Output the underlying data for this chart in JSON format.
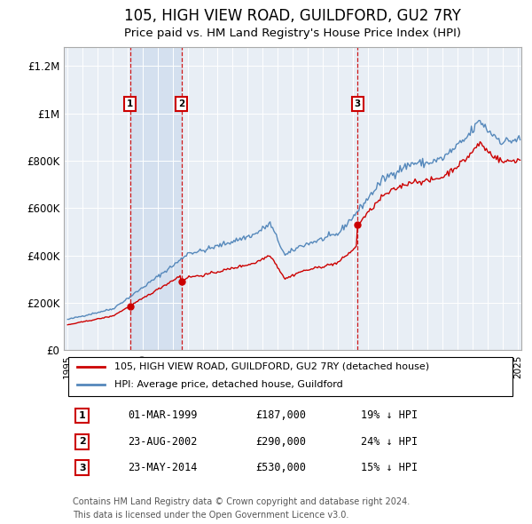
{
  "title": "105, HIGH VIEW ROAD, GUILDFORD, GU2 7RY",
  "subtitle": "Price paid vs. HM Land Registry's House Price Index (HPI)",
  "title_fontsize": 12,
  "subtitle_fontsize": 10,
  "ylabel_ticks": [
    "£0",
    "£200K",
    "£400K",
    "£600K",
    "£800K",
    "£1M",
    "£1.2M"
  ],
  "ytick_values": [
    0,
    200000,
    400000,
    600000,
    800000,
    1000000,
    1200000
  ],
  "ylim": [
    0,
    1280000
  ],
  "sale_dates_str": [
    "1999-03-01",
    "2002-08-01",
    "2014-05-01"
  ],
  "sale_prices": [
    187000,
    290000,
    530000
  ],
  "sale_labels": [
    "1",
    "2",
    "3"
  ],
  "sale_notes": [
    "01-MAR-1999",
    "23-AUG-2002",
    "23-MAY-2014"
  ],
  "sale_prices_str": [
    "£187,000",
    "£290,000",
    "£530,000"
  ],
  "sale_hpi_notes": [
    "19% ↓ HPI",
    "24% ↓ HPI",
    "15% ↓ HPI"
  ],
  "line_color_red": "#cc0000",
  "line_color_blue": "#5588bb",
  "vline_color": "#cc0000",
  "box_color": "#cc0000",
  "bg_color": "#e8eef5",
  "shade_color": "#c8d8ec",
  "legend_line1": "105, HIGH VIEW ROAD, GUILDFORD, GU2 7RY (detached house)",
  "legend_line2": "HPI: Average price, detached house, Guildford",
  "footer1": "Contains HM Land Registry data © Crown copyright and database right 2024.",
  "footer2": "This data is licensed under the Open Government Licence v3.0."
}
